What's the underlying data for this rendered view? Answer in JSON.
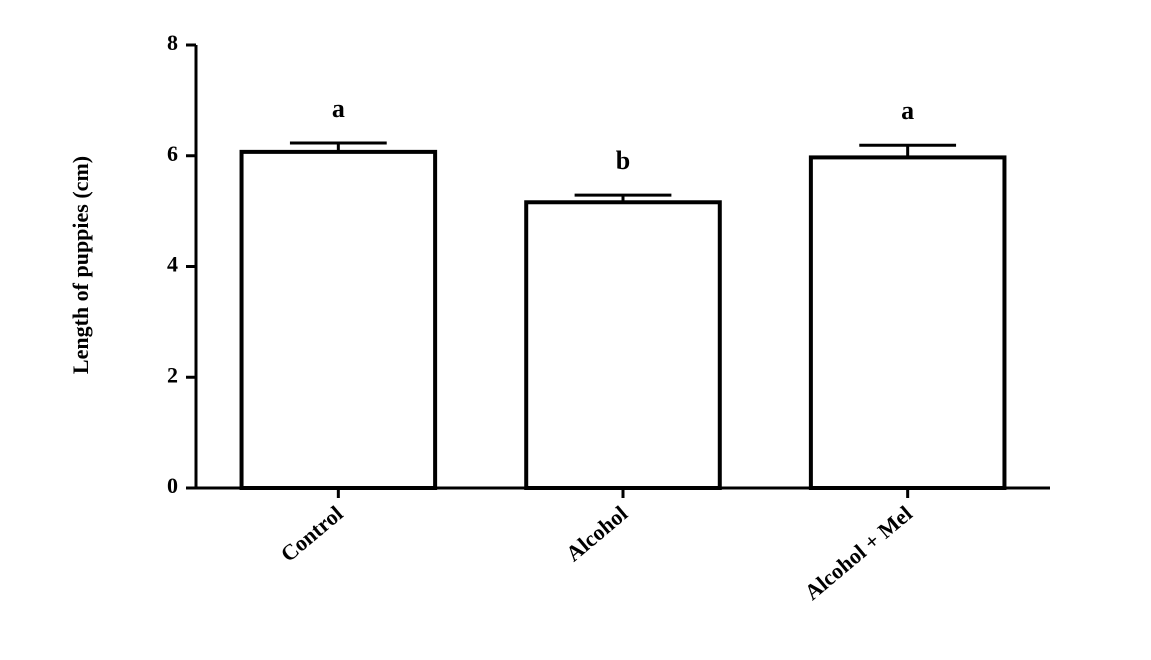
{
  "chart_data": {
    "type": "bar",
    "y_label": "Length of puppies (cm)",
    "categories": [
      "Control",
      "Alcohol",
      "Alcohol + Mel"
    ],
    "values": [
      6.07,
      5.16,
      5.97
    ],
    "errors": [
      0.16,
      0.13,
      0.22
    ],
    "significance_labels": [
      "a",
      "b",
      "a"
    ],
    "color": "#ffffff",
    "edge_color": "#000000",
    "ylim": [
      0,
      8
    ],
    "yticks": [
      0,
      2,
      4,
      6,
      8
    ],
    "grid": false
  }
}
